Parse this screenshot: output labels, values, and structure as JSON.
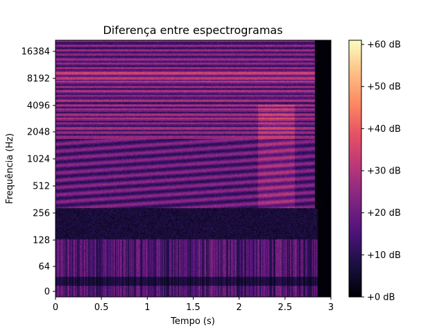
{
  "chart_data": {
    "type": "heatmap",
    "title": "Diferença entre espectrogramas",
    "xlabel": "Tempo (s)",
    "ylabel": "Frequência (Hz)",
    "x_scale": "linear",
    "xlim": [
      0,
      3
    ],
    "x_ticks": [
      0,
      0.5,
      1,
      1.5,
      2,
      2.5,
      3
    ],
    "x_tick_labels": [
      "0",
      "0.5",
      "1",
      "1.5",
      "2",
      "2.5",
      "3"
    ],
    "y_scale": "symlog (base 2, linear below ~64 Hz)",
    "ylim": [
      0,
      22050
    ],
    "y_ticks": [
      0,
      64,
      128,
      256,
      512,
      1024,
      2048,
      4096,
      8192,
      16384
    ],
    "y_tick_labels": [
      "0",
      "64",
      "128",
      "256",
      "512",
      "1024",
      "2048",
      "4096",
      "8192",
      "16384"
    ],
    "sound_end_time_s": 2.82,
    "colormap": "magma",
    "colorbar": {
      "range_db": [
        0,
        61
      ],
      "ticks": [
        0,
        10,
        20,
        30,
        40,
        50,
        60
      ],
      "tick_labels": [
        "+0 dB",
        "+10 dB",
        "+20 dB",
        "+30 dB",
        "+40 dB",
        "+50 dB",
        "+60 dB"
      ]
    },
    "grid": false,
    "legend": "none"
  }
}
